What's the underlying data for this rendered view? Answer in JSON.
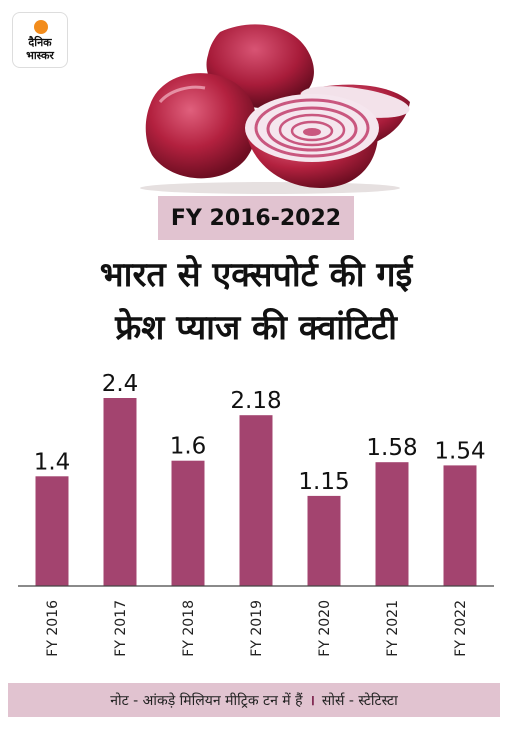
{
  "logo": {
    "line1": "दैनिक",
    "line2": "भास्कर"
  },
  "badge": "FY 2016-2022",
  "title": {
    "line1": "भारत से एक्सपोर्ट की गई",
    "line2": "फ्रेश प्याज की क्वांटिटी"
  },
  "chart_data": {
    "type": "bar",
    "categories": [
      "FY 2016",
      "FY 2017",
      "FY 2018",
      "FY 2019",
      "FY 2020",
      "FY 2021",
      "FY 2022"
    ],
    "values": [
      1.4,
      2.4,
      1.6,
      2.18,
      1.15,
      1.58,
      1.54
    ],
    "value_labels": [
      "1.4",
      "2.4",
      "1.6",
      "2.18",
      "1.15",
      "1.58",
      "1.54"
    ],
    "ylim": [
      0,
      2.4
    ],
    "grid": false,
    "bar_color": "#a3446f",
    "axis_color": "#444444"
  },
  "footer": {
    "note": "नोट - आंकड़े मिलियन मीट्रिक टन में हैं",
    "separator": "।",
    "source": "सोर्स - स्टेटिस्टा"
  },
  "colors": {
    "badge_bg": "#e1c3d0",
    "logo_accent": "#f28c1c"
  }
}
